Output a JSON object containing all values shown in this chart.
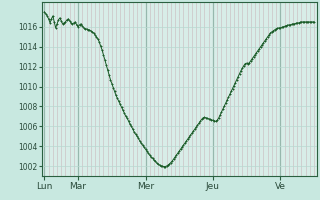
{
  "bg_color": "#c8e8e0",
  "plot_bg_color": "#d8ede8",
  "line_color": "#1a5c28",
  "marker_color": "#1a5c28",
  "grid_major_color": "#b8d8d0",
  "grid_minor_color": "#c8e0d8",
  "vline_color": "#4a7060",
  "tick_color": "#2a4a3a",
  "spine_color": "#2a6040",
  "yticks": [
    1002,
    1004,
    1006,
    1008,
    1010,
    1012,
    1014,
    1016
  ],
  "xtick_labels": [
    "Lun",
    "Mar",
    "Mer",
    "Jeu",
    "Ve"
  ],
  "xtick_positions": [
    0,
    24,
    72,
    120,
    168
  ],
  "ylim": [
    1001.0,
    1018.5
  ],
  "xlim": [
    -2,
    194
  ],
  "x": [
    0,
    1,
    2,
    3,
    4,
    5,
    6,
    7,
    8,
    9,
    10,
    11,
    12,
    13,
    14,
    15,
    16,
    17,
    18,
    19,
    20,
    21,
    22,
    23,
    24,
    25,
    26,
    27,
    28,
    29,
    30,
    31,
    32,
    33,
    34,
    35,
    36,
    37,
    38,
    39,
    40,
    41,
    42,
    43,
    44,
    45,
    46,
    47,
    48,
    49,
    50,
    51,
    52,
    53,
    54,
    55,
    56,
    57,
    58,
    59,
    60,
    61,
    62,
    63,
    64,
    65,
    66,
    67,
    68,
    69,
    70,
    71,
    72,
    73,
    74,
    75,
    76,
    77,
    78,
    79,
    80,
    81,
    82,
    83,
    84,
    85,
    86,
    87,
    88,
    89,
    90,
    91,
    92,
    93,
    94,
    95,
    96,
    97,
    98,
    99,
    100,
    101,
    102,
    103,
    104,
    105,
    106,
    107,
    108,
    109,
    110,
    111,
    112,
    113,
    114,
    115,
    116,
    117,
    118,
    119,
    120,
    121,
    122,
    123,
    124,
    125,
    126,
    127,
    128,
    129,
    130,
    131,
    132,
    133,
    134,
    135,
    136,
    137,
    138,
    139,
    140,
    141,
    142,
    143,
    144,
    145,
    146,
    147,
    148,
    149,
    150,
    151,
    152,
    153,
    154,
    155,
    156,
    157,
    158,
    159,
    160,
    161,
    162,
    163,
    164,
    165,
    166,
    167,
    168,
    169,
    170,
    171,
    172,
    173,
    174,
    175,
    176,
    177,
    178,
    179,
    180,
    181,
    182,
    183,
    184,
    185,
    186,
    187,
    188,
    189,
    190,
    191,
    192
  ],
  "y": [
    1017.5,
    1017.3,
    1017.1,
    1016.8,
    1016.4,
    1016.8,
    1017.1,
    1016.5,
    1015.9,
    1016.3,
    1016.7,
    1016.9,
    1016.6,
    1016.3,
    1016.4,
    1016.5,
    1016.7,
    1016.8,
    1016.6,
    1016.4,
    1016.3,
    1016.4,
    1016.5,
    1016.2,
    1016.0,
    1016.2,
    1016.3,
    1016.1,
    1015.9,
    1015.8,
    1015.8,
    1015.7,
    1015.7,
    1015.6,
    1015.5,
    1015.4,
    1015.2,
    1015.0,
    1014.8,
    1014.5,
    1014.1,
    1013.7,
    1013.2,
    1012.7,
    1012.2,
    1011.7,
    1011.2,
    1010.7,
    1010.3,
    1009.9,
    1009.5,
    1009.1,
    1008.8,
    1008.5,
    1008.2,
    1007.9,
    1007.6,
    1007.3,
    1007.0,
    1006.8,
    1006.5,
    1006.2,
    1006.0,
    1005.7,
    1005.4,
    1005.2,
    1005.0,
    1004.8,
    1004.5,
    1004.3,
    1004.1,
    1003.9,
    1003.7,
    1003.5,
    1003.3,
    1003.1,
    1002.9,
    1002.8,
    1002.6,
    1002.5,
    1002.3,
    1002.2,
    1002.1,
    1002.0,
    1002.0,
    1001.95,
    1001.95,
    1002.0,
    1002.1,
    1002.2,
    1002.35,
    1002.5,
    1002.7,
    1002.9,
    1003.1,
    1003.3,
    1003.5,
    1003.7,
    1003.9,
    1004.1,
    1004.3,
    1004.5,
    1004.7,
    1004.9,
    1005.1,
    1005.3,
    1005.5,
    1005.7,
    1005.9,
    1006.1,
    1006.3,
    1006.5,
    1006.7,
    1006.85,
    1006.9,
    1006.85,
    1006.8,
    1006.75,
    1006.7,
    1006.65,
    1006.6,
    1006.55,
    1006.5,
    1006.6,
    1006.8,
    1007.1,
    1007.4,
    1007.7,
    1008.0,
    1008.3,
    1008.6,
    1008.9,
    1009.2,
    1009.5,
    1009.8,
    1010.1,
    1010.4,
    1010.7,
    1011.0,
    1011.3,
    1011.6,
    1011.85,
    1012.1,
    1012.3,
    1012.35,
    1012.3,
    1012.4,
    1012.6,
    1012.8,
    1013.0,
    1013.2,
    1013.4,
    1013.6,
    1013.8,
    1014.0,
    1014.2,
    1014.4,
    1014.6,
    1014.8,
    1015.0,
    1015.2,
    1015.4,
    1015.5,
    1015.6,
    1015.7,
    1015.8,
    1015.85,
    1015.9,
    1015.9,
    1015.95,
    1016.0,
    1016.05,
    1016.1,
    1016.15,
    1016.2,
    1016.2,
    1016.25,
    1016.3,
    1016.3,
    1016.35,
    1016.4,
    1016.4,
    1016.45,
    1016.5,
    1016.5,
    1016.5,
    1016.5,
    1016.5,
    1016.5,
    1016.5,
    1016.5,
    1016.5,
    1016.5
  ]
}
